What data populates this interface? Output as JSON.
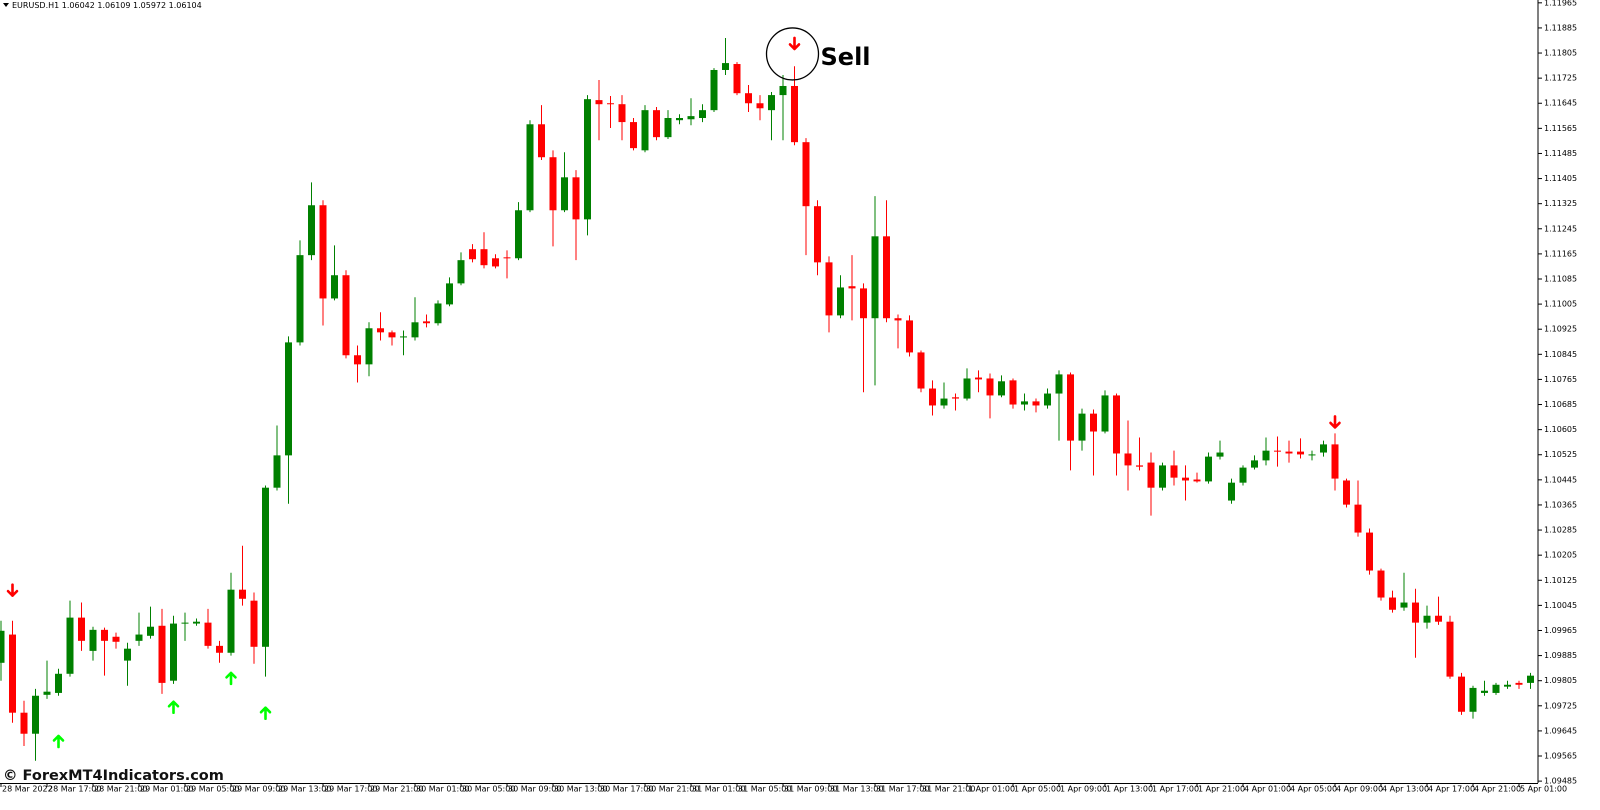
{
  "chart_data": {
    "type": "candlestick",
    "title": "EURUSD.H1  1.06042 1.06109 1.05972 1.06104",
    "watermark": "© ForexMT4Indicators.com",
    "annotation": {
      "text": "Sell",
      "x": 69
    },
    "colors": {
      "up": "#008000",
      "down": "#ff0000"
    },
    "categories": [
      "28 Mar 2022",
      null,
      null,
      null,
      "28 Mar 17:00",
      null,
      null,
      null,
      "28 Mar 21:00",
      null,
      null,
      null,
      "29 Mar 01:00",
      null,
      null,
      null,
      "29 Mar 05:00",
      null,
      null,
      null,
      "29 Mar 09:00",
      null,
      null,
      null,
      "29 Mar 13:00",
      null,
      null,
      null,
      "29 Mar 17:00",
      null,
      null,
      null,
      "29 Mar 21:00",
      null,
      null,
      null,
      "30 Mar 01:00",
      null,
      null,
      null,
      "30 Mar 05:00",
      null,
      null,
      null,
      "30 Mar 09:00",
      null,
      null,
      null,
      "30 Mar 13:00",
      null,
      null,
      null,
      "30 Mar 17:00",
      null,
      null,
      null,
      "30 Mar 21:00",
      null,
      null,
      null,
      "31 Mar 01:00",
      null,
      null,
      null,
      "31 Mar 05:00",
      null,
      null,
      null,
      "31 Mar 09:00",
      null,
      null,
      null,
      "31 Mar 13:00",
      null,
      null,
      null,
      "31 Mar 17:00",
      null,
      null,
      null,
      "31 Mar 21:00",
      null,
      null,
      null,
      "1 Apr 01:00",
      null,
      null,
      null,
      "1 Apr 05:00",
      null,
      null,
      null,
      "1 Apr 09:00",
      null,
      null,
      null,
      "1 Apr 13:00",
      null,
      null,
      null,
      "1 Apr 17:00",
      null,
      null,
      null,
      "1 Apr 21:00",
      null,
      null,
      null,
      "4 Apr 01:00",
      null,
      null,
      null,
      "4 Apr 05:00",
      null,
      null,
      null,
      "4 Apr 09:00",
      null,
      null,
      null,
      "4 Apr 13:00",
      null,
      null,
      null,
      "4 Apr 17:00",
      null,
      null,
      null,
      "4 Apr 21:00",
      null,
      null,
      null,
      "5 Apr 01:00",
      null
    ],
    "open": [
      1.09862,
      1.09952,
      1.09703,
      1.09636,
      1.0976,
      1.09766,
      1.09827,
      1.10006,
      1.099,
      1.09967,
      1.09945,
      1.09869,
      1.09932,
      1.09948,
      1.0998,
      1.09805,
      1.09987,
      1.09987,
      1.0999,
      1.09916,
      1.09894,
      1.10095,
      1.1006,
      1.09913,
      1.1042,
      1.10523,
      1.10883,
      1.11161,
      1.1132,
      1.11023,
      1.11097,
      1.10842,
      1.10813,
      1.10928,
      1.10915,
      1.10899,
      1.10899,
      1.1095,
      1.10944,
      1.11004,
      1.11071,
      1.1118,
      1.1118,
      1.11151,
      1.11154,
      1.11151,
      1.11304,
      1.11578,
      1.11473,
      1.11304,
      1.11409,
      1.11275,
      1.11655,
      1.11645,
      1.11642,
      1.11585,
      1.11495,
      1.11623,
      1.11537,
      1.11591,
      1.11594,
      1.11598,
      1.11623,
      1.11751,
      1.1177,
      1.11677,
      1.11645,
      1.11623,
      1.11671,
      1.117,
      1.11521,
      1.11317,
      1.11138,
      1.10969,
      1.11062,
      1.11055,
      1.1096,
      1.11221,
      1.1096,
      1.10953,
      1.10851,
      1.10736,
      1.10682,
      1.10708,
      1.10704,
      1.10771,
      1.10768,
      1.10714,
      1.10762,
      1.10685,
      1.10695,
      1.10682,
      1.1072,
      1.10781,
      1.1057,
      1.10656,
      1.10599,
      1.10714,
      1.10529,
      1.10491,
      1.105,
      1.1042,
      1.10491,
      1.10452,
      1.10446,
      1.1044,
      1.10519,
      1.10379,
      1.10436,
      1.10484,
      1.10507,
      1.10538,
      1.10535,
      1.10535,
      1.10523,
      1.10532,
      1.10558,
      1.10443,
      1.10366,
      1.10277,
      1.10156,
      1.1007,
      1.10038,
      1.10054,
      1.0999,
      1.10012,
      1.09993,
      1.09818,
      1.09706,
      1.09766,
      1.09766,
      1.09786,
      1.09798,
      1.09798
    ],
    "high": [
      1.09996,
      1.09996,
      1.09741,
      1.09779,
      1.09869,
      1.09843,
      1.1006,
      1.10054,
      1.09977,
      1.09974,
      1.09958,
      1.09926,
      1.10022,
      1.10041,
      1.10034,
      1.10012,
      1.10022,
      1.10003,
      1.10034,
      1.09932,
      1.10149,
      1.10235,
      1.10086,
      1.10427,
      1.10618,
      1.10902,
      1.11208,
      1.11393,
      1.11336,
      1.11192,
      1.11113,
      1.10873,
      1.10947,
      1.10979,
      1.10921,
      1.10921,
      1.11027,
      1.10972,
      1.11017,
      1.1109,
      1.1117,
      1.11196,
      1.11234,
      1.11164,
      1.11176,
      1.1133,
      1.11591,
      1.11639,
      1.11495,
      1.11489,
      1.11432,
      1.11671,
      1.11719,
      1.11668,
      1.11671,
      1.11598,
      1.11639,
      1.11633,
      1.11623,
      1.1161,
      1.11661,
      1.11642,
      1.11757,
      1.11853,
      1.11776,
      1.11703,
      1.11671,
      1.11681,
      1.11735,
      1.11763,
      1.11534,
      1.11336,
      1.11157,
      1.11097,
      1.11161,
      1.11071,
      1.11349,
      1.11336,
      1.10972,
      1.10969,
      1.10857,
      1.10762,
      1.10755,
      1.1072,
      1.108,
      1.10794,
      1.10784,
      1.10778,
      1.10768,
      1.1072,
      1.10704,
      1.10736,
      1.10794,
      1.10787,
      1.10672,
      1.10669,
      1.1073,
      1.1072,
      1.10634,
      1.1058,
      1.10532,
      1.105,
      1.10538,
      1.10491,
      1.10468,
      1.10532,
      1.1057,
      1.10449,
      1.10491,
      1.10523,
      1.1058,
      1.10583,
      1.1057,
      1.10577,
      1.10538,
      1.1057,
      1.10593,
      1.10449,
      1.10443,
      1.1029,
      1.10162,
      1.10092,
      1.10149,
      1.10098,
      1.10044,
      1.10073,
      1.10012,
      1.0983,
      1.09789,
      1.09805,
      1.09798,
      1.09805,
      1.09805,
      1.0983
    ],
    "low": [
      1.09805,
      1.09671,
      1.09597,
      1.0955,
      1.09747,
      1.09757,
      1.09818,
      1.099,
      1.09869,
      1.09821,
      1.09907,
      1.09789,
      1.09916,
      1.09939,
      1.09763,
      1.09795,
      1.09932,
      1.0998,
      1.09907,
      1.09862,
      1.09885,
      1.10044,
      1.09859,
      1.09818,
      1.10411,
      1.10369,
      1.10873,
      1.11145,
      1.10937,
      1.11017,
      1.10832,
      1.10755,
      1.10775,
      1.10889,
      1.10873,
      1.10842,
      1.10889,
      1.10931,
      1.10937,
      1.10998,
      1.11065,
      1.11138,
      1.11119,
      1.11119,
      1.11087,
      1.11145,
      1.11298,
      1.11464,
      1.11189,
      1.11298,
      1.11145,
      1.11224,
      1.11527,
      1.11566,
      1.11527,
      1.11495,
      1.11489,
      1.11527,
      1.11531,
      1.11578,
      1.11575,
      1.11585,
      1.11617,
      1.11735,
      1.11671,
      1.11617,
      1.11591,
      1.11527,
      1.11527,
      1.11511,
      1.11161,
      1.11097,
      1.10915,
      1.1096,
      1.10953,
      1.10724,
      1.10746,
      1.10947,
      1.10864,
      1.10838,
      1.10724,
      1.1065,
      1.10672,
      1.10666,
      1.10698,
      1.10724,
      1.10641,
      1.10708,
      1.10672,
      1.10666,
      1.1066,
      1.10672,
      1.1057,
      1.10475,
      1.10538,
      1.10459,
      1.10593,
      1.10459,
      1.10411,
      1.10475,
      1.10331,
      1.10411,
      1.10427,
      1.10379,
      1.10436,
      1.10433,
      1.1051,
      1.10369,
      1.10427,
      1.10478,
      1.10491,
      1.10487,
      1.105,
      1.10513,
      1.10507,
      1.10519,
      1.10411,
      1.10357,
      1.10264,
      1.10143,
      1.1006,
      1.10022,
      1.10028,
      1.09878,
      1.09971,
      1.09983,
      1.09811,
      1.09696,
      1.09684,
      1.09757,
      1.0976,
      1.09779,
      1.09779,
      1.09779
    ],
    "close": [
      1.09964,
      1.09703,
      1.09636,
      1.09757,
      1.0977,
      1.09827,
      1.10006,
      1.09932,
      1.09967,
      1.09932,
      1.09929,
      1.09907,
      1.09952,
      1.09977,
      1.09798,
      1.09987,
      1.0999,
      1.09993,
      1.09916,
      1.09894,
      1.10095,
      1.10066,
      1.09913,
      1.1042,
      1.10523,
      1.10883,
      1.11161,
      1.1132,
      1.11023,
      1.11097,
      1.10842,
      1.10813,
      1.10928,
      1.10915,
      1.10899,
      1.10902,
      1.10947,
      1.10944,
      1.11007,
      1.11071,
      1.11145,
      1.11148,
      1.11129,
      1.11125,
      1.11151,
      1.11304,
      1.11578,
      1.11473,
      1.11304,
      1.11409,
      1.11275,
      1.11658,
      1.11642,
      1.11642,
      1.11585,
      1.11502,
      1.11623,
      1.11537,
      1.11598,
      1.11598,
      1.11604,
      1.11623,
      1.11751,
      1.11773,
      1.11677,
      1.11645,
      1.11629,
      1.11671,
      1.117,
      1.11521,
      1.11317,
      1.11138,
      1.10969,
      1.11058,
      1.11055,
      1.1096,
      1.11221,
      1.1096,
      1.10953,
      1.10851,
      1.10736,
      1.10682,
      1.10704,
      1.10704,
      1.10768,
      1.10765,
      1.10714,
      1.10759,
      1.10685,
      1.10695,
      1.10682,
      1.1072,
      1.10781,
      1.1057,
      1.10656,
      1.10599,
      1.10714,
      1.10529,
      1.10491,
      1.10487,
      1.1042,
      1.10491,
      1.10452,
      1.10443,
      1.1044,
      1.10519,
      1.10532,
      1.10436,
      1.10484,
      1.10507,
      1.10538,
      1.10535,
      1.10529,
      1.10526,
      1.10526,
      1.10558,
      1.10449,
      1.10366,
      1.10277,
      1.10156,
      1.1007,
      1.10031,
      1.10054,
      1.0999,
      1.10012,
      1.09993,
      1.09818,
      1.09706,
      1.09782,
      1.09773,
      1.09792,
      1.09792,
      1.09792,
      1.09821
    ],
    "signals": [
      {
        "x": 1,
        "y": 1.10092,
        "direction": "down",
        "color": "#ff0000"
      },
      {
        "x": 5,
        "y": 1.09613,
        "direction": "up",
        "color": "#00ff00"
      },
      {
        "x": 15,
        "y": 1.09722,
        "direction": "up",
        "color": "#00ff00"
      },
      {
        "x": 20,
        "y": 1.09814,
        "direction": "up",
        "color": "#00ff00"
      },
      {
        "x": 23,
        "y": 1.09703,
        "direction": "up",
        "color": "#00ff00"
      },
      {
        "x": 69,
        "y": 1.11834,
        "direction": "down",
        "color": "#ff0000"
      },
      {
        "x": 116,
        "y": 1.10628,
        "direction": "down",
        "color": "#ff0000"
      }
    ],
    "ylim": [
      1.09479,
      1.11974
    ],
    "yticks": [
      1.09485,
      1.09565,
      1.09645,
      1.09725,
      1.09805,
      1.09885,
      1.09965,
      1.10045,
      1.10125,
      1.10205,
      1.10285,
      1.10365,
      1.10445,
      1.10525,
      1.10605,
      1.10685,
      1.10765,
      1.10845,
      1.10925,
      1.11005,
      1.11085,
      1.11165,
      1.11245,
      1.11325,
      1.11405,
      1.11485,
      1.11565,
      1.11645,
      1.11725,
      1.11805,
      1.11885,
      1.11965
    ]
  }
}
